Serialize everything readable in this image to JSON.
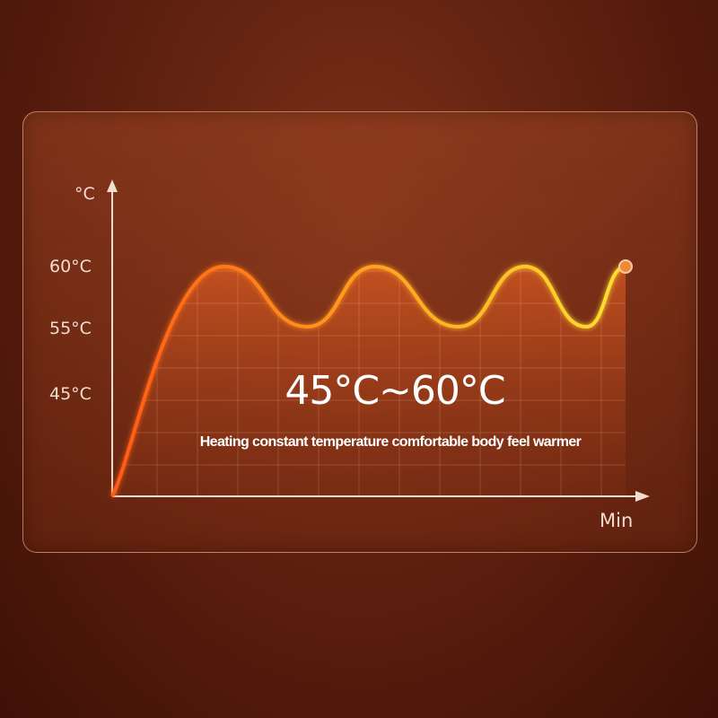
{
  "chart_data": {
    "type": "line",
    "title": "",
    "ylabel": "°C",
    "xlabel": "Min",
    "y_ticks": [
      {
        "value": 60,
        "label": "60°C"
      },
      {
        "value": 55,
        "label": "55°C"
      },
      {
        "value": 45,
        "label": "45°C"
      }
    ],
    "x": [
      0,
      10,
      17.5,
      23.5,
      31,
      37,
      42.5,
      46
    ],
    "series": [
      {
        "values": [
          30,
          60,
          55,
          60,
          55,
          60,
          55,
          60
        ]
      }
    ],
    "grid": true,
    "colors": {
      "start": "#ff5a14",
      "end": "#ffd21e",
      "fill": "#c8501e"
    },
    "headline": "45°C~60°C",
    "caption": "Heating constant temperature comfortable body feel warmer"
  }
}
